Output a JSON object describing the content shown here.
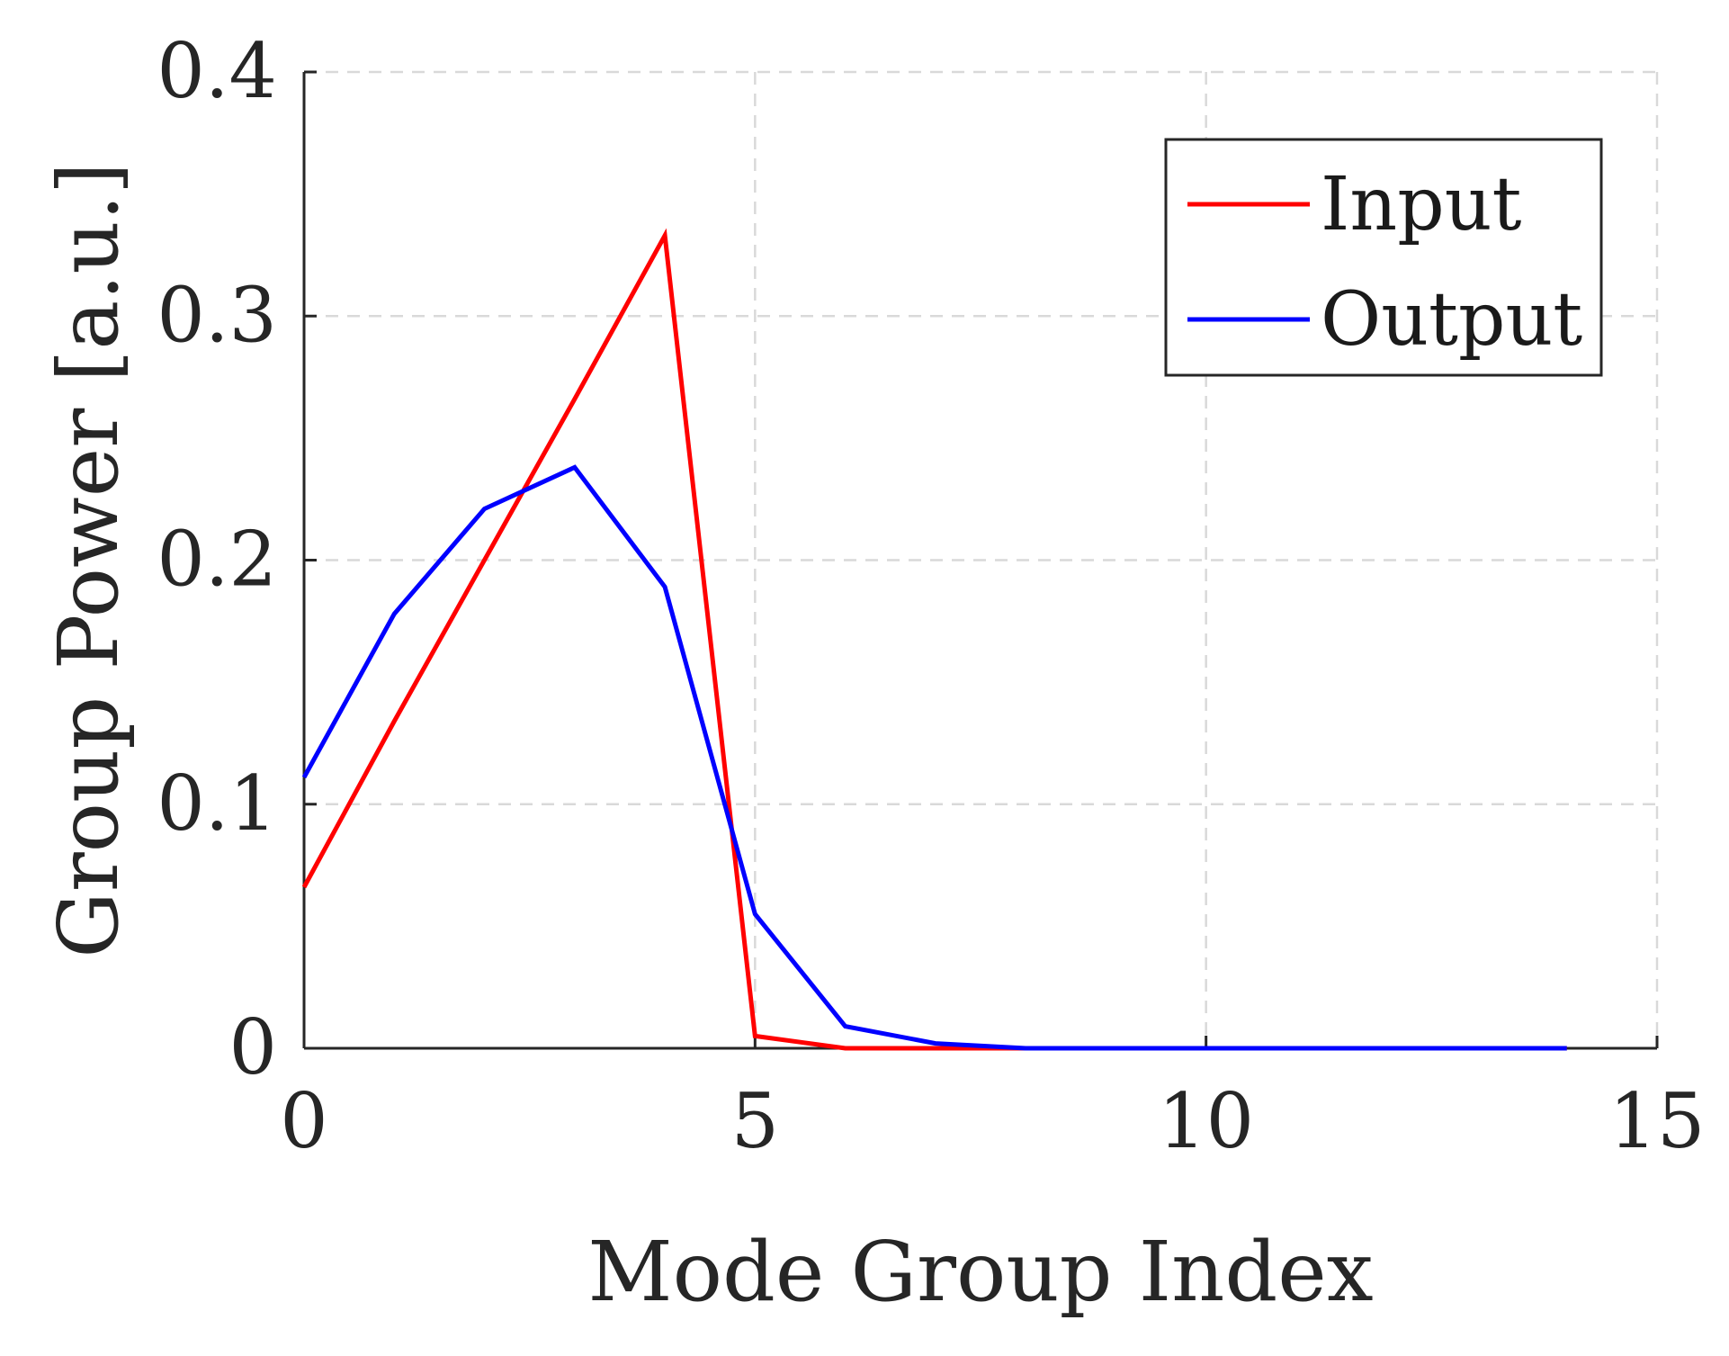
{
  "chart_data": {
    "type": "line",
    "xlabel": "Mode Group Index",
    "ylabel": "Group Power [a.u.]",
    "xlim": [
      0,
      15
    ],
    "ylim": [
      0,
      0.4
    ],
    "x_ticks": [
      0,
      5,
      10,
      15
    ],
    "x_tick_labels": [
      "0",
      "5",
      "10",
      "15"
    ],
    "y_ticks": [
      0,
      0.1,
      0.2,
      0.3,
      0.4
    ],
    "y_tick_labels": [
      "0",
      "0.1",
      "0.2",
      "0.3",
      "0.4"
    ],
    "grid": true,
    "legend_position": "top-right",
    "x": [
      0,
      1,
      2,
      3,
      4,
      5,
      6,
      7,
      8,
      9,
      10,
      11,
      12,
      13,
      14
    ],
    "series": [
      {
        "name": "Input",
        "color": "#ff0000",
        "values": [
          0.066,
          0.134,
          0.2,
          0.266,
          0.333,
          0.005,
          0.0,
          0.0,
          0.0,
          0.0,
          0.0,
          0.0,
          0.0,
          0.0,
          0.0
        ]
      },
      {
        "name": "Output",
        "color": "#0000ff",
        "values": [
          0.111,
          0.178,
          0.221,
          0.238,
          0.189,
          0.055,
          0.009,
          0.002,
          0.0,
          0.0,
          0.0,
          0.0,
          0.0,
          0.0,
          0.0
        ]
      }
    ]
  }
}
